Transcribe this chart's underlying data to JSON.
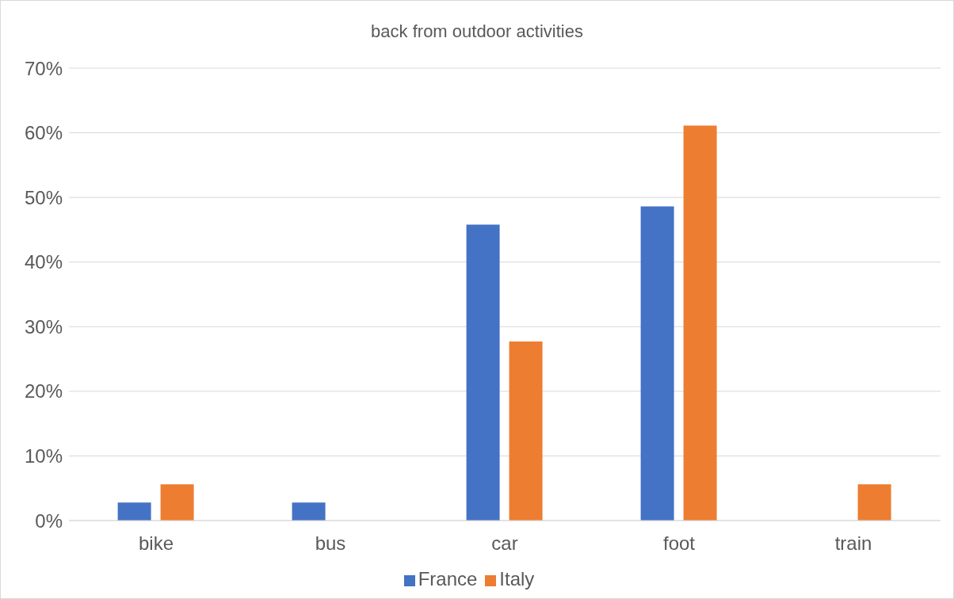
{
  "chart_data": {
    "type": "bar",
    "title": "back from outdoor activities",
    "categories": [
      "bike",
      "bus",
      "car",
      "foot",
      "train"
    ],
    "series": [
      {
        "name": "France",
        "color": "#4472c4",
        "values": [
          2.8,
          2.8,
          45.8,
          48.6,
          0
        ]
      },
      {
        "name": "Italy",
        "color": "#ed7d31",
        "values": [
          5.6,
          0,
          27.7,
          61.1,
          5.6
        ]
      }
    ],
    "ylim": [
      0,
      70
    ],
    "yticks": [
      {
        "value": 0,
        "label": "0%"
      },
      {
        "value": 10,
        "label": "10%"
      },
      {
        "value": 20,
        "label": "20%"
      },
      {
        "value": 30,
        "label": "30%"
      },
      {
        "value": 40,
        "label": "40%"
      },
      {
        "value": 50,
        "label": "50%"
      },
      {
        "value": 60,
        "label": "60%"
      },
      {
        "value": 70,
        "label": "70%"
      }
    ],
    "grid": "y",
    "legend": "bottom"
  }
}
